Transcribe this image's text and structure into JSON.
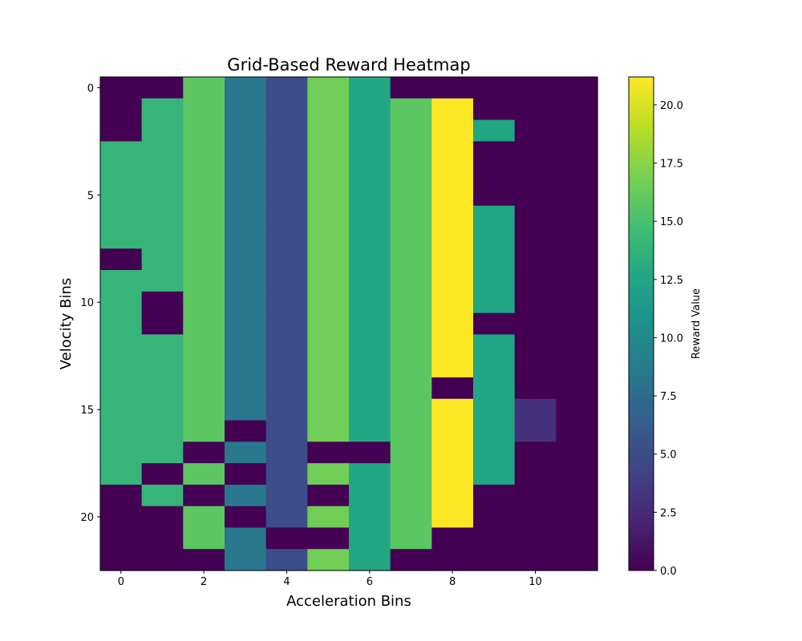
{
  "chart_data": {
    "type": "heatmap",
    "title": "Grid-Based Reward Heatmap",
    "xlabel": "Acceleration Bins",
    "ylabel": "Velocity Bins",
    "colorbar_label": "Reward Value",
    "colormap": "viridis",
    "vmin": 0.0,
    "vmax": 21.2,
    "x_ticks": [
      "0",
      "2",
      "4",
      "6",
      "8",
      "10"
    ],
    "y_ticks": [
      "0",
      "5",
      "10",
      "15",
      "20"
    ],
    "colorbar_ticks": [
      "0.0",
      "2.5",
      "5.0",
      "7.5",
      "10.0",
      "12.5",
      "15.0",
      "17.5",
      "20.0"
    ],
    "n_cols": 12,
    "n_rows": 23,
    "values": [
      [
        0,
        0,
        15.8,
        8.5,
        5,
        16.6,
        12.6,
        0,
        0,
        0,
        0,
        0
      ],
      [
        0,
        14,
        15.8,
        8.5,
        5,
        16.6,
        12.6,
        15.8,
        21.2,
        0,
        0,
        0
      ],
      [
        0,
        14,
        15.8,
        8.5,
        5,
        16.6,
        12.6,
        15.8,
        21.2,
        12.6,
        0,
        0
      ],
      [
        14,
        14,
        15.8,
        8.5,
        5,
        16.6,
        12.6,
        15.8,
        21.2,
        0,
        0,
        0
      ],
      [
        14,
        14,
        15.8,
        8.5,
        5,
        16.6,
        12.6,
        15.8,
        21.2,
        0,
        0,
        0
      ],
      [
        14,
        14,
        15.8,
        8.5,
        5,
        16.6,
        12.6,
        15.8,
        21.2,
        0,
        0,
        0
      ],
      [
        14,
        14,
        15.8,
        8.5,
        5,
        16.6,
        12.6,
        15.8,
        21.2,
        12.6,
        0,
        0
      ],
      [
        14,
        14,
        15.8,
        8.5,
        5,
        16.6,
        12.6,
        15.8,
        21.2,
        12.6,
        0,
        0
      ],
      [
        0,
        14,
        15.8,
        8.5,
        5,
        16.6,
        12.6,
        15.8,
        21.2,
        12.6,
        0,
        0
      ],
      [
        14,
        14,
        15.8,
        8.5,
        5,
        16.6,
        12.6,
        15.8,
        21.2,
        12.6,
        0,
        0
      ],
      [
        14,
        0,
        15.8,
        8.5,
        5,
        16.6,
        12.6,
        15.8,
        21.2,
        12.6,
        0,
        0
      ],
      [
        14,
        0,
        15.8,
        8.5,
        5,
        16.6,
        12.6,
        15.8,
        21.2,
        0,
        0,
        0
      ],
      [
        14,
        14,
        15.8,
        8.5,
        5,
        16.6,
        12.6,
        15.8,
        21.2,
        12.6,
        0,
        0
      ],
      [
        14,
        14,
        15.8,
        8.5,
        5,
        16.6,
        12.6,
        15.8,
        21.2,
        12.6,
        0,
        0
      ],
      [
        14,
        14,
        15.8,
        8.5,
        5,
        16.6,
        12.6,
        15.8,
        0,
        12.6,
        0,
        0
      ],
      [
        14,
        14,
        15.8,
        8.5,
        5,
        16.6,
        12.6,
        15.8,
        21.2,
        12.6,
        3,
        0
      ],
      [
        14,
        14,
        15.8,
        0,
        5,
        16.6,
        12.6,
        15.8,
        21.2,
        12.6,
        3,
        0
      ],
      [
        14,
        14,
        0,
        8.5,
        5,
        0,
        0,
        15.8,
        21.2,
        12.6,
        0,
        0
      ],
      [
        14,
        0,
        15.8,
        0,
        5,
        16.6,
        12.6,
        15.8,
        21.2,
        12.6,
        0,
        0
      ],
      [
        0,
        14,
        0,
        8.5,
        5,
        0,
        12.6,
        15.8,
        21.2,
        0,
        0,
        0
      ],
      [
        0,
        0,
        15.8,
        0,
        5,
        16.6,
        12.6,
        15.8,
        21.2,
        0,
        0,
        0
      ],
      [
        0,
        0,
        15.8,
        8.5,
        0,
        0,
        12.6,
        15.8,
        0,
        0,
        0,
        0
      ],
      [
        0,
        0,
        0,
        8.5,
        5,
        16.6,
        12.6,
        0,
        0,
        0,
        0,
        0
      ]
    ]
  }
}
